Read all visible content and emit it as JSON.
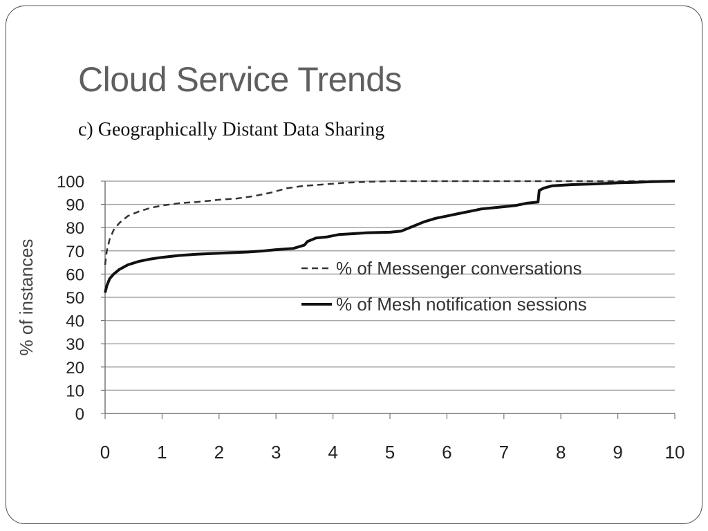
{
  "slide": {
    "title": "Cloud Service Trends",
    "subtitle": "c) Geographically Distant Data Sharing"
  },
  "chart_data": {
    "type": "line",
    "title": "",
    "xlabel": "",
    "ylabel": "% of instances",
    "xlim": [
      0,
      10
    ],
    "ylim": [
      0,
      100
    ],
    "xticks": [
      0,
      1,
      2,
      3,
      4,
      5,
      6,
      7,
      8,
      9,
      10
    ],
    "yticks": [
      0,
      10,
      20,
      30,
      40,
      50,
      60,
      70,
      80,
      90,
      100
    ],
    "grid": "horizontal",
    "legend_position": "center-right",
    "series": [
      {
        "name": "% of Messenger conversations",
        "style": "dashed",
        "color": "#333333",
        "points": [
          [
            0,
            64
          ],
          [
            0.03,
            70
          ],
          [
            0.08,
            75
          ],
          [
            0.15,
            79
          ],
          [
            0.25,
            82
          ],
          [
            0.4,
            85
          ],
          [
            0.6,
            87
          ],
          [
            0.8,
            88.5
          ],
          [
            1.0,
            89.5
          ],
          [
            1.3,
            90.5
          ],
          [
            1.6,
            91
          ],
          [
            2.0,
            92
          ],
          [
            2.3,
            92.5
          ],
          [
            2.6,
            93.5
          ],
          [
            2.9,
            95
          ],
          [
            3.2,
            97
          ],
          [
            3.5,
            98
          ],
          [
            3.8,
            98.5
          ],
          [
            4.2,
            99.3
          ],
          [
            4.6,
            99.7
          ],
          [
            5.0,
            100
          ],
          [
            10,
            100
          ]
        ]
      },
      {
        "name": "% of Mesh notification sessions",
        "style": "solid",
        "color": "#111111",
        "points": [
          [
            0,
            52
          ],
          [
            0.03,
            55
          ],
          [
            0.08,
            58
          ],
          [
            0.15,
            60
          ],
          [
            0.25,
            62
          ],
          [
            0.4,
            64
          ],
          [
            0.6,
            65.5
          ],
          [
            0.8,
            66.5
          ],
          [
            1.0,
            67.2
          ],
          [
            1.3,
            68
          ],
          [
            1.6,
            68.5
          ],
          [
            2.0,
            69
          ],
          [
            2.5,
            69.5
          ],
          [
            2.8,
            70
          ],
          [
            3.0,
            70.5
          ],
          [
            3.3,
            71
          ],
          [
            3.5,
            72.5
          ],
          [
            3.55,
            74
          ],
          [
            3.7,
            75.5
          ],
          [
            3.9,
            76
          ],
          [
            4.1,
            77
          ],
          [
            4.3,
            77.3
          ],
          [
            4.6,
            77.8
          ],
          [
            5.0,
            78
          ],
          [
            5.2,
            78.5
          ],
          [
            5.4,
            80.5
          ],
          [
            5.6,
            82.5
          ],
          [
            5.8,
            84
          ],
          [
            6.0,
            85
          ],
          [
            6.2,
            86
          ],
          [
            6.4,
            87
          ],
          [
            6.6,
            88
          ],
          [
            6.8,
            88.5
          ],
          [
            7.0,
            89
          ],
          [
            7.2,
            89.5
          ],
          [
            7.4,
            90.5
          ],
          [
            7.6,
            91
          ],
          [
            7.62,
            96
          ],
          [
            7.7,
            97
          ],
          [
            7.85,
            98
          ],
          [
            8.2,
            98.5
          ],
          [
            8.6,
            98.8
          ],
          [
            9.0,
            99.3
          ],
          [
            9.3,
            99.5
          ],
          [
            9.6,
            99.8
          ],
          [
            10,
            100
          ]
        ]
      }
    ]
  }
}
